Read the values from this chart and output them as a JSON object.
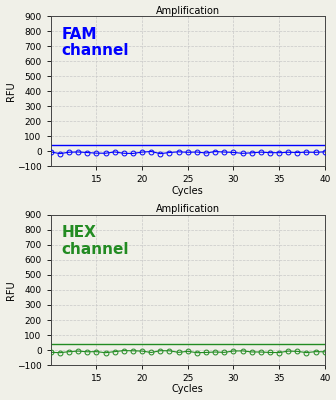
{
  "title": "Amplification",
  "xlabel": "Cycles",
  "ylabel": "RFU",
  "ylim": [
    -100,
    900
  ],
  "yticks": [
    -100,
    0,
    100,
    200,
    300,
    400,
    500,
    600,
    700,
    800,
    900
  ],
  "xlim": [
    10,
    40
  ],
  "xticks": [
    15,
    20,
    25,
    30,
    35,
    40
  ],
  "x_start": 10,
  "x_end": 40,
  "fam_label": "FAM\nchannel",
  "fam_color": "#0000ff",
  "fam_line_y": 42,
  "fam_dots_y": -5,
  "hex_label": "HEX\nchannel",
  "hex_color": "#228B22",
  "hex_line_y": 42,
  "hex_dots_y": -8,
  "bg_color": "#f0f0e8",
  "grid_color": "#c8c8c8",
  "title_fontsize": 7,
  "label_fontsize": 7,
  "channel_fontsize": 11,
  "tick_fontsize": 6.5
}
